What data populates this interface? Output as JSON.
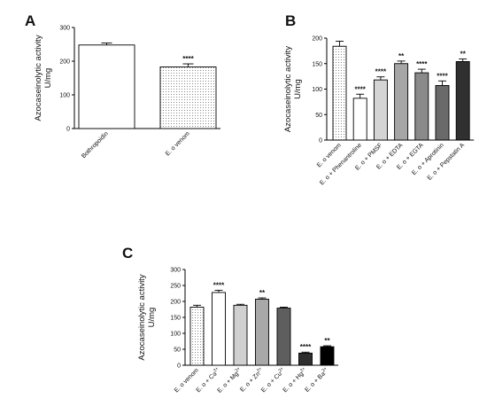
{
  "chart_data": [
    {
      "panel": "A",
      "type": "bar",
      "ylabel_line1": "Azocaseinolytic activity",
      "ylabel_line2": "U/mg",
      "ylim": [
        0,
        300
      ],
      "yticks": [
        "0",
        "100",
        "200",
        "300"
      ],
      "grid": false,
      "categories": [
        "Bothropoidin",
        "E. o venom"
      ],
      "values": [
        248,
        183
      ],
      "errors": [
        6,
        9
      ],
      "significance": [
        "",
        "****"
      ],
      "fills": [
        "white",
        "dots"
      ]
    },
    {
      "panel": "B",
      "type": "bar",
      "ylabel_line1": "Azocaseinolytic activity",
      "ylabel_line2": "U/mg",
      "ylim": [
        0,
        200
      ],
      "yticks": [
        "0",
        "50",
        "100",
        "150",
        "200"
      ],
      "grid": false,
      "categories": [
        "E. o venom",
        "E. o + Phenantroline",
        "E. o + PMSF",
        "E. o + EDTA",
        "E. o + EGTA",
        "E. o + Aprotinin",
        "E. o + Pepstatin A"
      ],
      "values": [
        184,
        82,
        118,
        150,
        132,
        107,
        154
      ],
      "errors": [
        10,
        8,
        6,
        5,
        7,
        9,
        5
      ],
      "significance": [
        "",
        "****",
        "****",
        "**",
        "****",
        "****",
        "**"
      ],
      "fills": [
        "dots",
        "#ffffff",
        "#d4d4d4",
        "#a6a6a6",
        "#8a8a8a",
        "#6a6a6a",
        "#303030"
      ]
    },
    {
      "panel": "C",
      "type": "bar",
      "ylabel_line1": "Azocaseinolytic activity",
      "ylabel_line2": "U/mg",
      "ylim": [
        0,
        300
      ],
      "yticks": [
        "0",
        "50",
        "100",
        "150",
        "200",
        "250",
        "300"
      ],
      "grid": false,
      "categories": [
        {
          "base": "E. o venom",
          "sup": ""
        },
        {
          "base": "E. o + Ca",
          "sup": "2+"
        },
        {
          "base": "E. o + Mg",
          "sup": "2+"
        },
        {
          "base": "E. o + Zn",
          "sup": "2+"
        },
        {
          "base": "E. o + Cu",
          "sup": "2+"
        },
        {
          "base": "E. o + Hg",
          "sup": "2+"
        },
        {
          "base": "E. o + Ba",
          "sup": "2+"
        }
      ],
      "values": [
        182,
        228,
        188,
        207,
        179,
        38,
        58
      ],
      "errors": [
        6,
        7,
        3,
        4,
        3,
        3,
        3
      ],
      "significance": [
        "",
        "****",
        "",
        "**",
        "",
        "****",
        "**"
      ],
      "fills": [
        "dots",
        "#ffffff",
        "#d0d0d0",
        "#a8a8a8",
        "#5e5e5e",
        "#2e2e2e",
        "#000000"
      ]
    }
  ]
}
